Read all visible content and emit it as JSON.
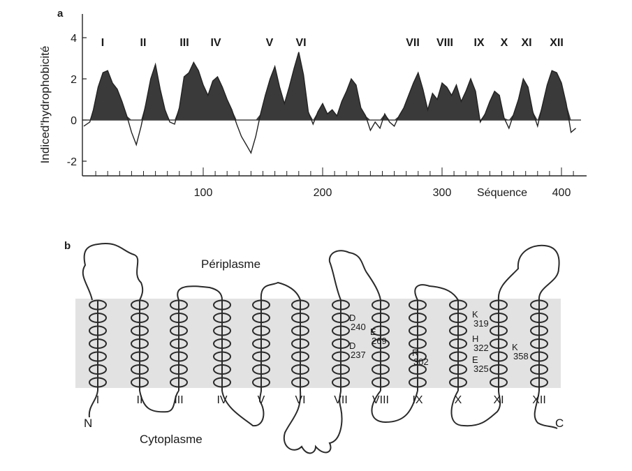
{
  "panel_a": {
    "label": "a",
    "chart_data": {
      "type": "area",
      "ylabel": "Indiced'hydrophobicité",
      "xlabel": "Séquence",
      "y_ticks": [
        4,
        2,
        0,
        -2
      ],
      "x_ticks": [
        100,
        200,
        300,
        400
      ],
      "ylim": [
        -2.6,
        4.6
      ],
      "xlim": [
        0,
        420
      ],
      "segments": [
        "I",
        "II",
        "III",
        "IV",
        "V",
        "VI",
        "VII",
        "VIII",
        "IX",
        "X",
        "XI",
        "XII"
      ],
      "profile": {
        "x": [
          0,
          5,
          8,
          12,
          16,
          20,
          24,
          28,
          32,
          36,
          40,
          44,
          48,
          52,
          56,
          60,
          64,
          68,
          72,
          76,
          80,
          84,
          88,
          92,
          96,
          100,
          104,
          108,
          112,
          116,
          120,
          124,
          128,
          132,
          136,
          140,
          144,
          148,
          152,
          156,
          160,
          164,
          168,
          172,
          176,
          180,
          184,
          188,
          192,
          196,
          200,
          204,
          208,
          212,
          216,
          220,
          224,
          228,
          232,
          236,
          240,
          244,
          248,
          252,
          256,
          260,
          264,
          268,
          272,
          276,
          280,
          284,
          288,
          292,
          296,
          300,
          304,
          308,
          312,
          316,
          320,
          324,
          328,
          332,
          336,
          340,
          344,
          348,
          352,
          356,
          360,
          364,
          368,
          372,
          376,
          380,
          384,
          388,
          392,
          396,
          400,
          404,
          408,
          412
        ],
        "y": [
          -0.3,
          -0.1,
          0.5,
          1.6,
          2.3,
          2.4,
          1.8,
          1.5,
          0.9,
          0.2,
          -0.6,
          -1.2,
          -0.3,
          0.8,
          2.0,
          2.7,
          1.5,
          0.5,
          -0.1,
          -0.2,
          0.6,
          2.1,
          2.3,
          2.8,
          2.4,
          1.7,
          1.2,
          1.9,
          2.1,
          1.6,
          1.0,
          0.5,
          -0.2,
          -0.8,
          -1.2,
          -1.6,
          -0.8,
          0.3,
          1.2,
          2.0,
          2.6,
          1.6,
          0.8,
          1.6,
          2.5,
          3.3,
          2.2,
          0.4,
          -0.2,
          0.4,
          0.8,
          0.3,
          0.5,
          0.2,
          0.9,
          1.4,
          2.0,
          1.7,
          0.6,
          0.2,
          -0.5,
          -0.1,
          -0.4,
          0.3,
          -0.1,
          -0.3,
          0.2,
          0.6,
          1.2,
          1.8,
          2.3,
          1.5,
          0.5,
          1.3,
          1.0,
          1.8,
          1.6,
          1.2,
          1.7,
          0.9,
          1.4,
          2.0,
          1.4,
          -0.1,
          0.3,
          0.9,
          1.4,
          1.2,
          0.1,
          -0.4,
          0.3,
          1.0,
          2.0,
          1.6,
          0.4,
          -0.3,
          0.7,
          1.7,
          2.4,
          2.3,
          1.8,
          0.8,
          -0.6,
          -0.4
        ]
      }
    }
  },
  "panel_b": {
    "label": "b",
    "periplasm_label": "Périplasme",
    "cytoplasm_label": "Cytoplasme",
    "n_label": "N",
    "c_label": "C",
    "segments": [
      "I",
      "II",
      "III",
      "IV",
      "V",
      "VI",
      "VII",
      "VIII",
      "IX",
      "X",
      "XI",
      "XII"
    ],
    "residues": [
      {
        "letter": "D",
        "number": "240"
      },
      {
        "letter": "D",
        "number": "237"
      },
      {
        "letter": "E",
        "number": "269"
      },
      {
        "letter": "R",
        "number": "302"
      },
      {
        "letter": "K",
        "number": "319"
      },
      {
        "letter": "H",
        "number": "322"
      },
      {
        "letter": "E",
        "number": "325"
      },
      {
        "letter": "K",
        "number": "358"
      }
    ]
  }
}
